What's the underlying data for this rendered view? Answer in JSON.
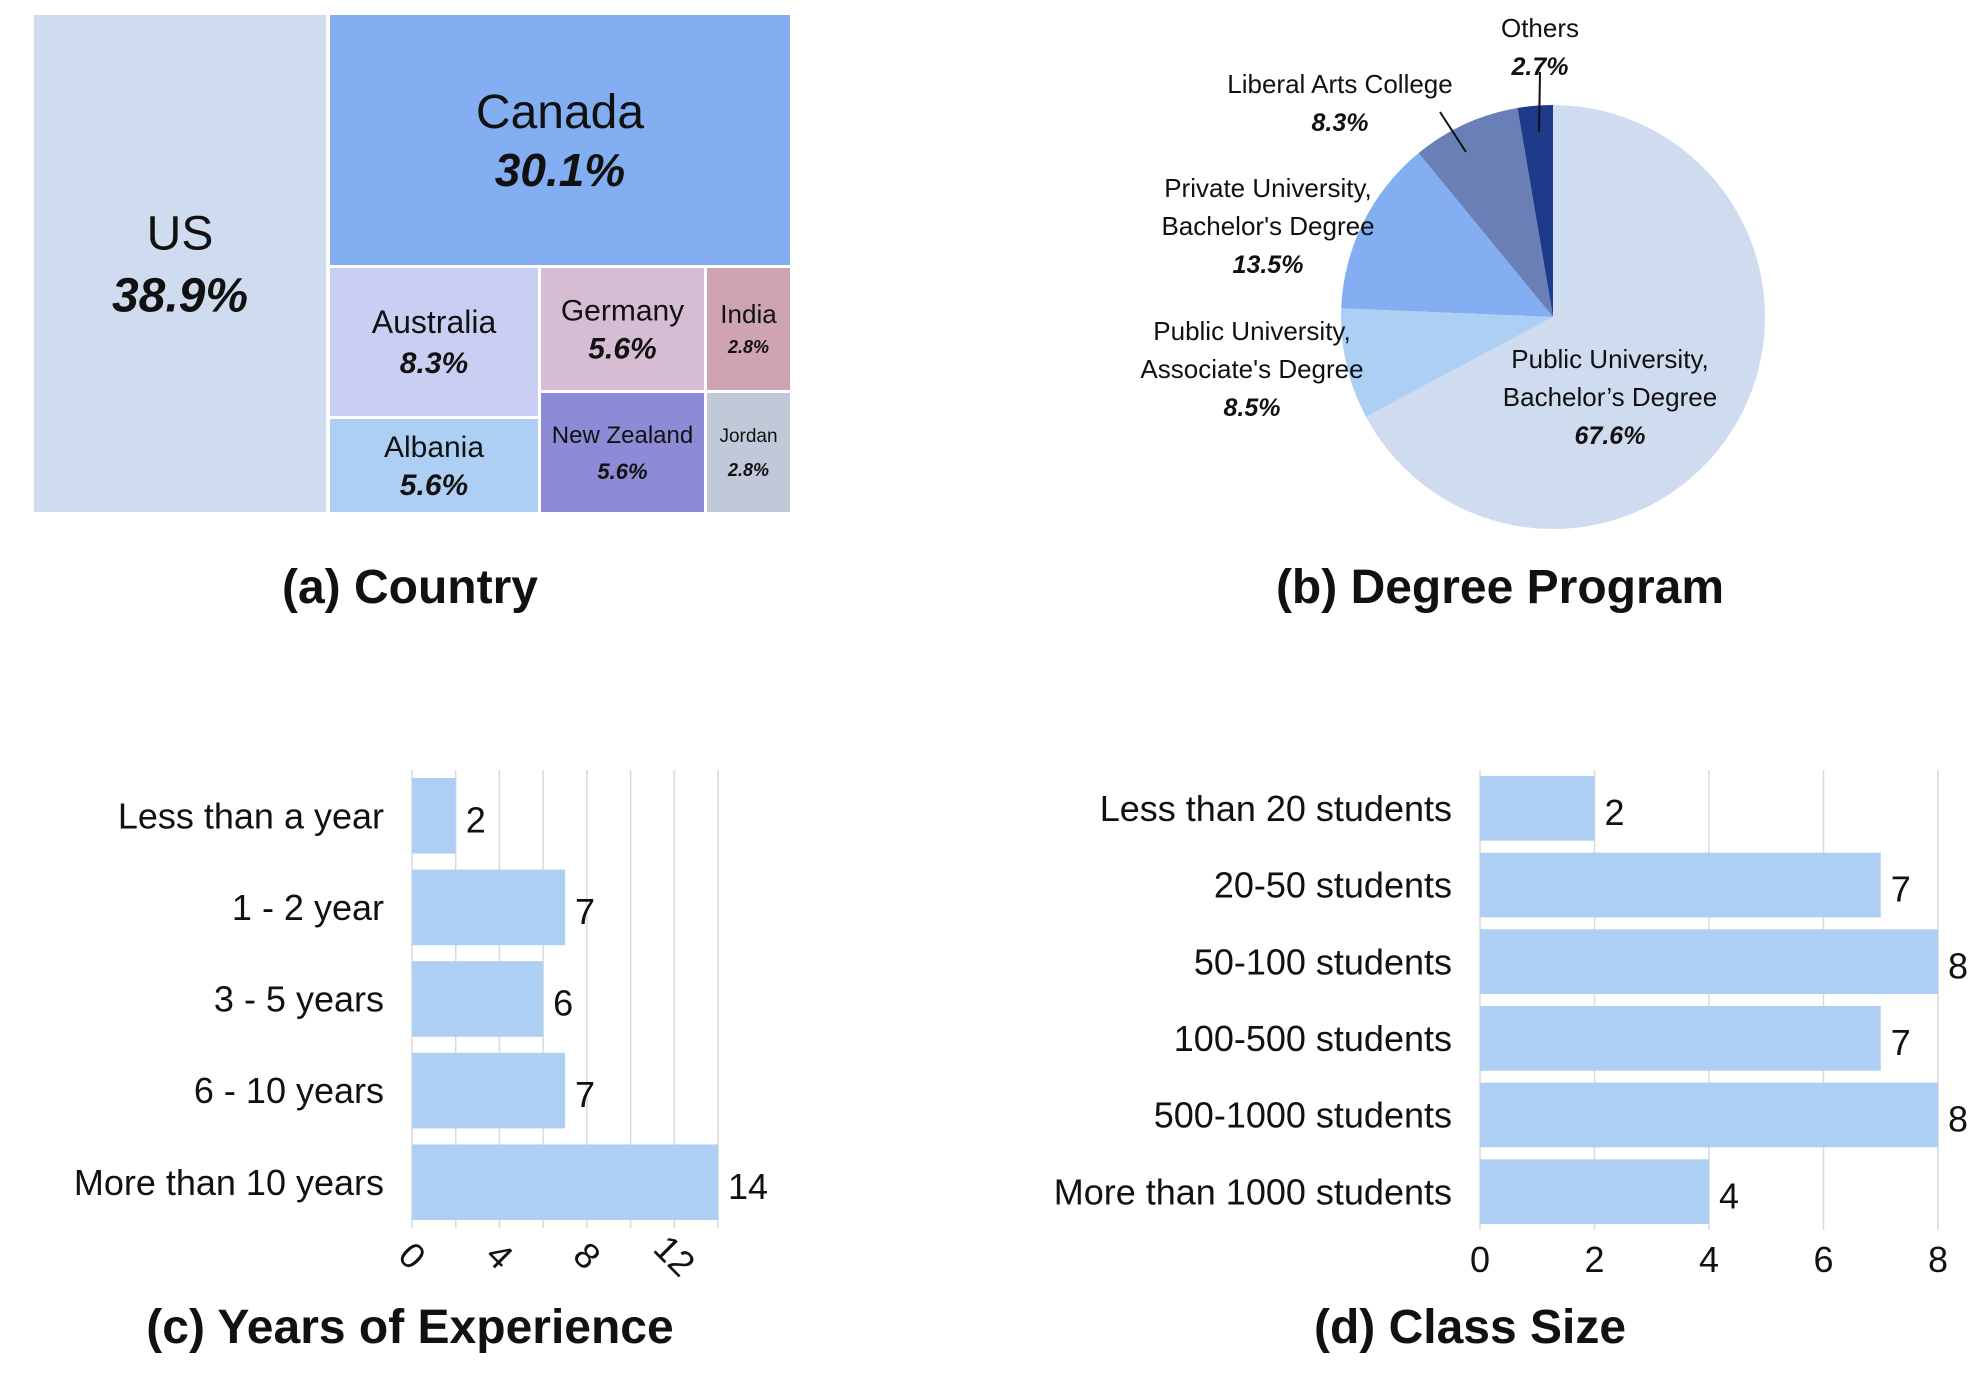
{
  "captions": {
    "a": "(a) Country",
    "b": "(b) Degree Program",
    "c": "(c) Years of Experience",
    "d": "(d) Class Size"
  },
  "chart_data": [
    {
      "id": "country",
      "type": "treemap",
      "title": "(a) Country",
      "items": [
        {
          "label": "US",
          "value": 38.9,
          "display": "38.9%",
          "color": "#cfdcf0"
        },
        {
          "label": "Canada",
          "value": 30.1,
          "display": "30.1%",
          "color": "#83aef2"
        },
        {
          "label": "Australia",
          "value": 8.3,
          "display": "8.3%",
          "color": "#c9cff3"
        },
        {
          "label": "Germany",
          "value": 5.6,
          "display": "5.6%",
          "color": "#d6bdd3"
        },
        {
          "label": "India",
          "value": 2.8,
          "display": "2.8%",
          "color": "#cfa4b2"
        },
        {
          "label": "Albania",
          "value": 5.6,
          "display": "5.6%",
          "color": "#aecff4"
        },
        {
          "label": "New Zealand",
          "value": 5.6,
          "display": "5.6%",
          "color": "#8d8bd6"
        },
        {
          "label": "Jordan",
          "value": 2.8,
          "display": "2.8%",
          "color": "#c1c9d9"
        }
      ]
    },
    {
      "id": "degree",
      "type": "pie",
      "title": "(b) Degree Program",
      "slices": [
        {
          "label": [
            "Others"
          ],
          "value": 2.7,
          "display": "2.7%",
          "color": "#1e3a8a"
        },
        {
          "label": [
            "Liberal Arts College"
          ],
          "value": 8.3,
          "display": "8.3%",
          "color": "#6a7fb5"
        },
        {
          "label": [
            "Private University,",
            "Bachelor's Degree"
          ],
          "value": 13.5,
          "display": "13.5%",
          "color": "#83aef2"
        },
        {
          "label": [
            "Public University,",
            "Associate's Degree"
          ],
          "value": 8.5,
          "display": "8.5%",
          "color": "#aecff4"
        },
        {
          "label": [
            "Public University,",
            "Bachelor’s Degree"
          ],
          "value": 67.6,
          "display": "67.6%",
          "color": "#cfdcf0"
        }
      ]
    },
    {
      "id": "experience",
      "type": "bar",
      "orientation": "horizontal",
      "title": "(c) Years of Experience",
      "categories": [
        "Less than a year",
        "1 - 2 year",
        "3 - 5 years",
        "6 - 10 years",
        "More than 10 years"
      ],
      "values": [
        2,
        7,
        6,
        7,
        14
      ],
      "xticks": [
        0,
        4,
        8,
        12
      ],
      "xlim": [
        0,
        14
      ],
      "grid": true,
      "color": "#aecff4"
    },
    {
      "id": "classsize",
      "type": "bar",
      "orientation": "horizontal",
      "title": "(d) Class Size",
      "categories": [
        "Less than 20 students",
        "20-50 students",
        "50-100 students",
        "100-500 students",
        "500-1000 students",
        "More than 1000 students"
      ],
      "values": [
        2,
        7,
        8,
        7,
        8,
        4
      ],
      "xticks": [
        0,
        2,
        4,
        6,
        8
      ],
      "xlim": [
        0,
        8
      ],
      "grid": true,
      "color": "#aecff4"
    }
  ]
}
